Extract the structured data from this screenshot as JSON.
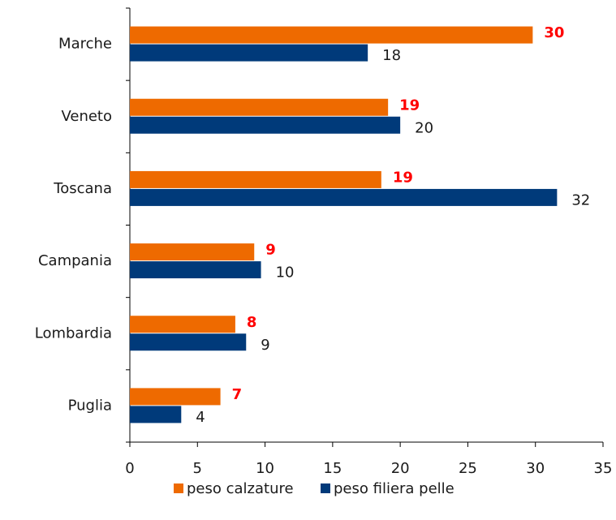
{
  "chart_data": {
    "type": "bar",
    "orientation": "horizontal",
    "categories": [
      "Marche",
      "Veneto",
      "Toscana",
      "Campania",
      "Lombardia",
      "Puglia"
    ],
    "series": [
      {
        "name": "peso calzature",
        "color": "#ee6a00",
        "values": [
          29.8,
          19.1,
          18.6,
          9.2,
          7.8,
          6.7
        ],
        "value_labels": [
          "30",
          "19",
          "19",
          "9",
          "8",
          "7"
        ]
      },
      {
        "name": "peso filiera pelle",
        "color": "#003a7a",
        "values": [
          17.6,
          20,
          31.6,
          9.7,
          8.6,
          3.8
        ],
        "value_labels": [
          "18",
          "20",
          "32",
          "10",
          "9",
          "4"
        ]
      }
    ],
    "xlim": [
      0,
      35
    ],
    "xticks": [
      0,
      5,
      10,
      15,
      20,
      25,
      30,
      35
    ],
    "legend": "bottom"
  }
}
